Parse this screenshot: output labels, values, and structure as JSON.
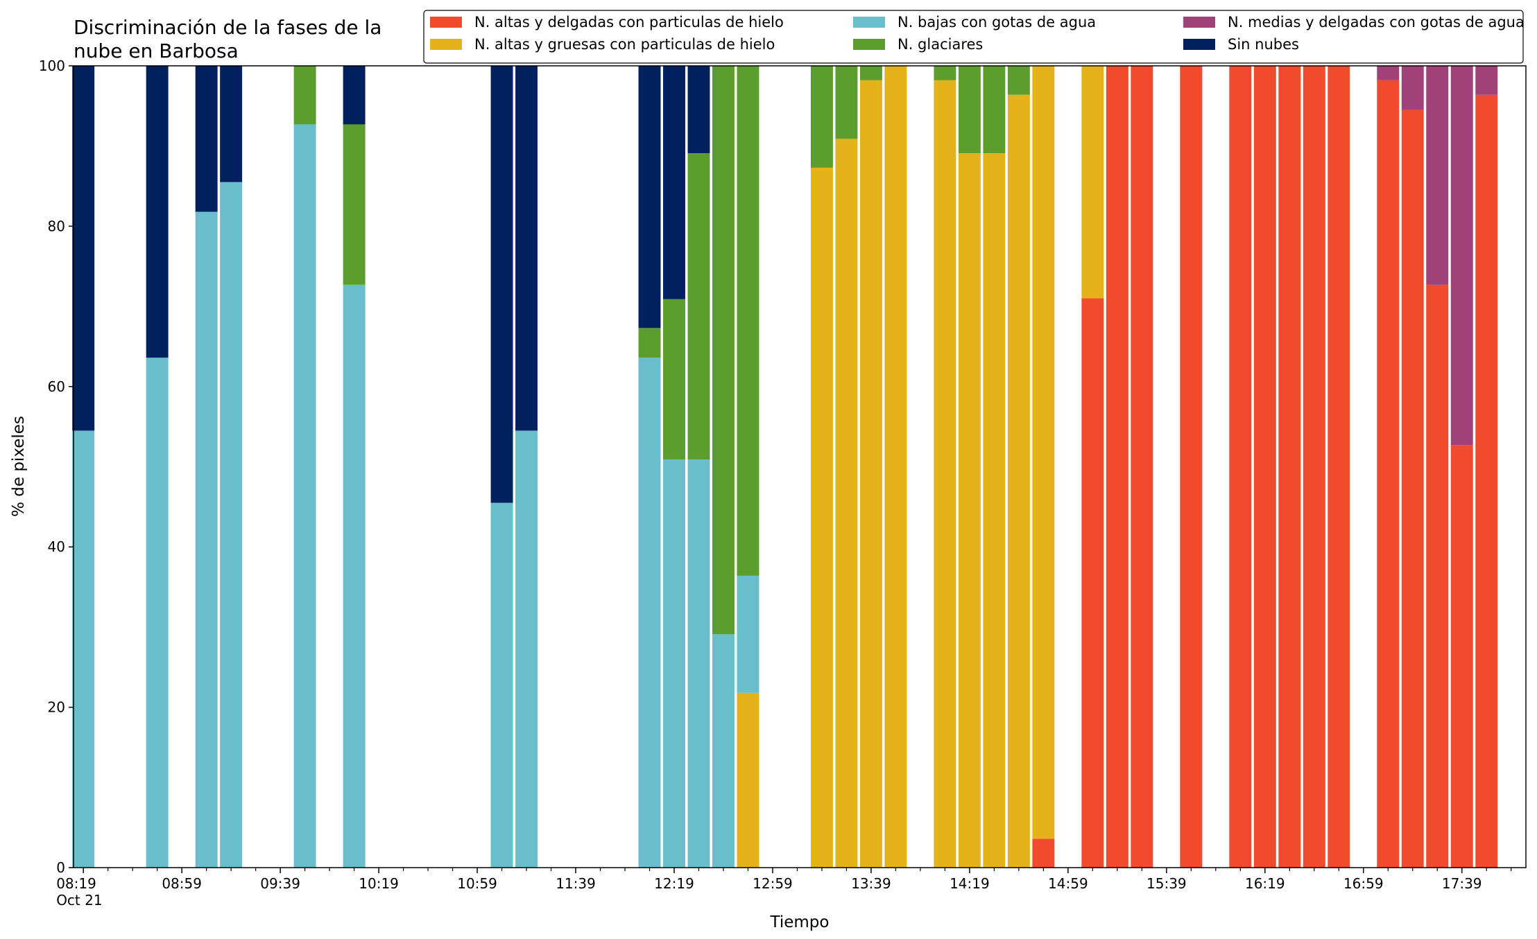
{
  "chart_data": {
    "type": "bar",
    "stacked": true,
    "title": "Discriminación de la fases de la\nnube en Barbosa",
    "xlabel": "Tiempo",
    "ylabel": "% de pixeles",
    "ylim": [
      0,
      100
    ],
    "yticks": [
      0,
      20,
      40,
      60,
      80,
      100
    ],
    "xtick_labels": [
      "08:19\nOct 21",
      "08:59",
      "09:39",
      "10:19",
      "10:59",
      "11:39",
      "12:19",
      "12:59",
      "13:39",
      "14:19",
      "14:59",
      "15:39",
      "16:19",
      "16:59",
      "17:39"
    ],
    "grid": false,
    "legend_position": "top-right",
    "x": [
      "08:19",
      "08:49",
      "09:09",
      "09:19",
      "09:49",
      "10:09",
      "11:09",
      "11:19",
      "12:09",
      "12:19",
      "12:29",
      "12:39",
      "12:49",
      "13:19",
      "13:29",
      "13:39",
      "13:49",
      "14:09",
      "14:19",
      "14:29",
      "14:39",
      "14:49",
      "15:09",
      "15:19",
      "15:29",
      "15:49",
      "16:09",
      "16:19",
      "16:29",
      "16:39",
      "16:49",
      "17:09",
      "17:19",
      "17:29",
      "17:39",
      "17:49"
    ],
    "series": [
      {
        "name": "N. altas y delgadas con particulas de hielo",
        "color": "#f04b2c",
        "values": [
          0,
          0,
          0,
          0,
          0,
          0,
          0,
          0,
          0,
          0,
          0,
          0,
          0,
          0,
          0,
          0,
          0,
          0,
          0,
          0,
          0,
          3.6,
          71,
          100,
          100,
          100,
          100,
          100,
          100,
          100,
          100,
          98.2,
          94.5,
          72.7,
          52.7,
          96.4
        ]
      },
      {
        "name": "N. altas y gruesas con particulas de hielo",
        "color": "#e4b31a",
        "values": [
          0,
          0,
          0,
          0,
          0,
          0,
          0,
          0,
          0,
          0,
          0,
          0,
          21.8,
          87.3,
          90.9,
          98.2,
          100,
          98.2,
          89.1,
          89.1,
          96.4,
          96.4,
          29,
          0,
          0,
          0,
          0,
          0,
          0,
          0,
          0,
          0,
          0,
          0,
          0,
          0
        ]
      },
      {
        "name": "N. bajas con gotas de agua",
        "color": "#68bfcb",
        "values": [
          54.5,
          63.6,
          81.8,
          85.5,
          92.7,
          72.7,
          45.5,
          54.5,
          63.6,
          50.9,
          50.9,
          29.1,
          14.6,
          0,
          0,
          0,
          0,
          0,
          0,
          0,
          0,
          0,
          0,
          0,
          0,
          0,
          0,
          0,
          0,
          0,
          0,
          0,
          0,
          0,
          0,
          0
        ]
      },
      {
        "name": "N. glaciares",
        "color": "#5c9e2e",
        "values": [
          0,
          0,
          0,
          0,
          7.3,
          20,
          0,
          0,
          3.7,
          20,
          38.2,
          70.9,
          63.6,
          12.7,
          9.1,
          1.8,
          0,
          1.8,
          10.9,
          10.9,
          3.6,
          0,
          0,
          0,
          0,
          0,
          0,
          0,
          0,
          0,
          0,
          0,
          0,
          0,
          0,
          0
        ]
      },
      {
        "name": "N. medias y delgadas con gotas de agua",
        "color": "#a0417a",
        "values": [
          0,
          0,
          0,
          0,
          0,
          0,
          0,
          0,
          0,
          0,
          0,
          0,
          0,
          0,
          0,
          0,
          0,
          0,
          0,
          0,
          0,
          0,
          0,
          0,
          0,
          0,
          0,
          0,
          0,
          0,
          0,
          1.8,
          5.5,
          27.3,
          47.3,
          3.6
        ]
      },
      {
        "name": "Sin nubes",
        "color": "#03215e",
        "values": [
          45.5,
          36.4,
          18.2,
          14.5,
          0,
          7.3,
          54.5,
          45.5,
          32.7,
          29.1,
          10.9,
          0,
          0,
          0,
          0,
          0,
          0,
          0,
          0,
          0,
          0,
          0,
          0,
          0,
          0,
          0,
          0,
          0,
          0,
          0,
          0,
          0,
          0,
          0,
          0,
          0
        ]
      }
    ],
    "legend_order": [
      0,
      1,
      2,
      3,
      4,
      5
    ]
  }
}
